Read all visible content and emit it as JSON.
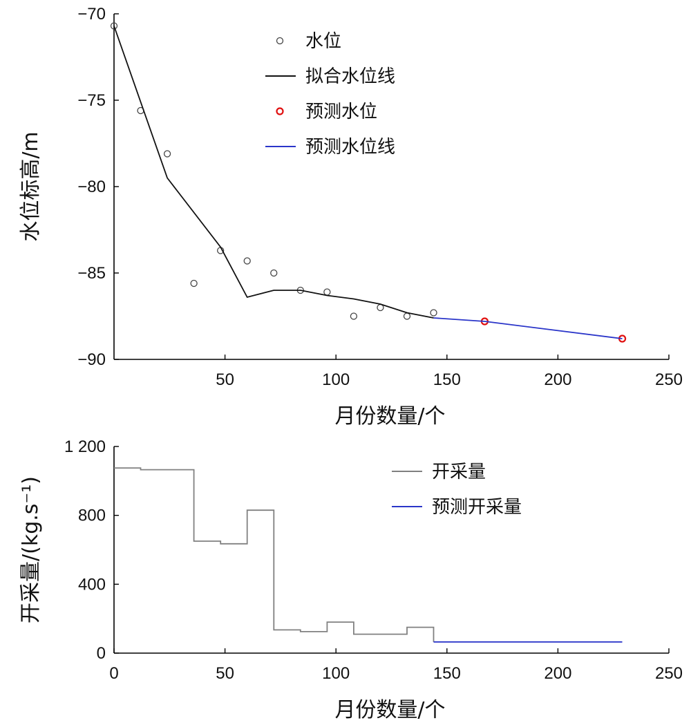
{
  "chart_data": [
    {
      "type": "line",
      "xlabel": "月份数量/个",
      "ylabel": "水位标高/m",
      "xlim": [
        0,
        250
      ],
      "ylim": [
        -90,
        -70
      ],
      "xticks": [
        50,
        100,
        150,
        200,
        250
      ],
      "yticks": [
        -90,
        -85,
        -80,
        -75,
        -70
      ],
      "xtick_labels": [
        "50",
        "100",
        "150",
        "200",
        "250"
      ],
      "ytick_labels": [
        "−90",
        "−85",
        "−80",
        "−75",
        "−70"
      ],
      "legend_position": "top-center",
      "series": [
        {
          "name": "水位",
          "kind": "scatter",
          "color": "#444444",
          "points": [
            [
              0,
              -70.7
            ],
            [
              12,
              -75.6
            ],
            [
              24,
              -78.1
            ],
            [
              36,
              -85.6
            ],
            [
              48,
              -83.7
            ],
            [
              60,
              -84.3
            ],
            [
              72,
              -85.0
            ],
            [
              84,
              -86.0
            ],
            [
              96,
              -86.1
            ],
            [
              108,
              -87.5
            ],
            [
              120,
              -87.0
            ],
            [
              132,
              -87.5
            ],
            [
              144,
              -87.3
            ]
          ]
        },
        {
          "name": "拟合水位线",
          "kind": "line",
          "color": "#111111",
          "points": [
            [
              0,
              -70.7
            ],
            [
              24,
              -79.5
            ],
            [
              48,
              -83.5
            ],
            [
              60,
              -86.4
            ],
            [
              72,
              -86.0
            ],
            [
              84,
              -86.0
            ],
            [
              96,
              -86.3
            ],
            [
              108,
              -86.5
            ],
            [
              120,
              -86.8
            ],
            [
              132,
              -87.3
            ],
            [
              144,
              -87.6
            ]
          ]
        },
        {
          "name": "预测水位",
          "kind": "scatter",
          "color": "#e01010",
          "points": [
            [
              167,
              -87.8
            ],
            [
              229,
              -88.8
            ]
          ]
        },
        {
          "name": "预测水位线",
          "kind": "line",
          "color": "#2a35c9",
          "points": [
            [
              144,
              -87.6
            ],
            [
              167,
              -87.8
            ],
            [
              229,
              -88.8
            ]
          ]
        }
      ]
    },
    {
      "type": "line",
      "xlabel": "月份数量/个",
      "ylabel": "开采量/(kg.s⁻¹)",
      "xlim": [
        0,
        250
      ],
      "ylim": [
        0,
        1200
      ],
      "xticks": [
        0,
        50,
        100,
        150,
        200,
        250
      ],
      "yticks": [
        0,
        400,
        800,
        1200
      ],
      "xtick_labels": [
        "0",
        "50",
        "100",
        "150",
        "200",
        "250"
      ],
      "ytick_labels": [
        "0",
        "400",
        "800",
        "1 200"
      ],
      "legend_position": "top-right",
      "series": [
        {
          "name": "开采量",
          "kind": "step",
          "color": "#808080",
          "points": [
            [
              0,
              1075
            ],
            [
              12,
              1065
            ],
            [
              36,
              650
            ],
            [
              48,
              635
            ],
            [
              60,
              830
            ],
            [
              72,
              135
            ],
            [
              84,
              125
            ],
            [
              96,
              180
            ],
            [
              108,
              110
            ],
            [
              132,
              150
            ],
            [
              144,
              150
            ]
          ]
        },
        {
          "name": "预测开采量",
          "kind": "step",
          "color": "#2a35c9",
          "points": [
            [
              144,
              65
            ],
            [
              229,
              65
            ]
          ]
        }
      ]
    }
  ]
}
